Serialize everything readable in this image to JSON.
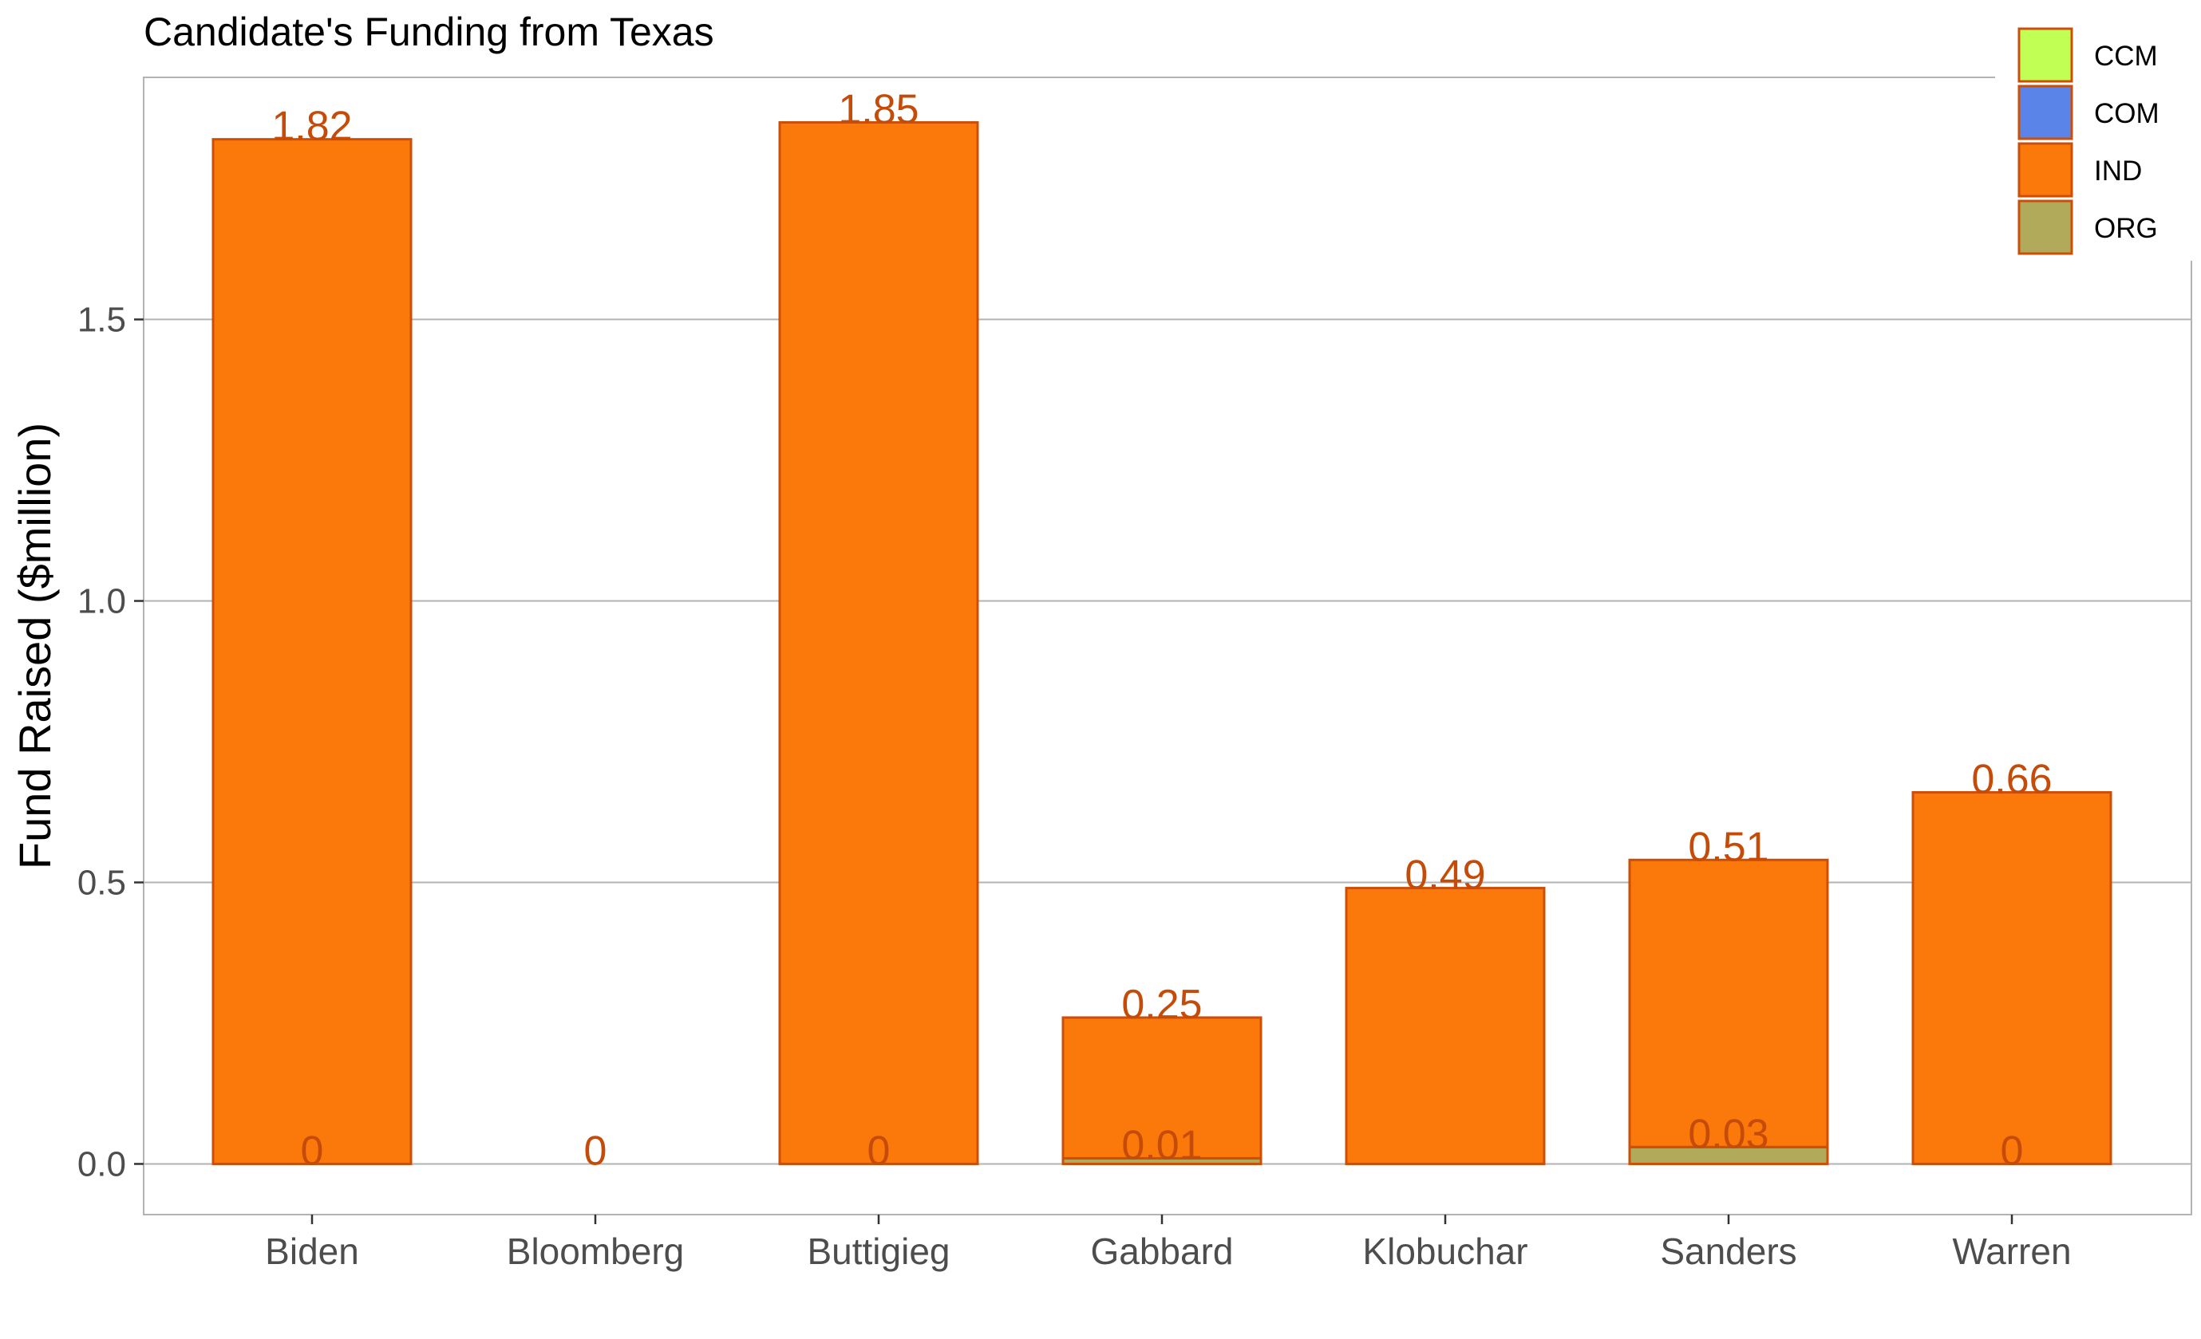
{
  "chart_data": {
    "type": "bar",
    "stacked": true,
    "title": "Candidate's Funding from Texas",
    "xlabel": "",
    "ylabel": "Fund Raised ($million)",
    "ylim": [
      -0.09,
      1.93
    ],
    "yticks": [
      0.0,
      0.5,
      1.0,
      1.5
    ],
    "ytick_labels": [
      "0.0",
      "0.5",
      "1.0",
      "1.5"
    ],
    "grid": "horizontal",
    "legend_position": "top-right",
    "categories": [
      "Biden",
      "Bloomberg",
      "Buttigieg",
      "Gabbard",
      "Klobuchar",
      "Sanders",
      "Warren"
    ],
    "series": [
      {
        "name": "CCM",
        "color": "#c2ff55",
        "values": [
          0,
          0,
          0,
          0,
          0,
          0,
          0
        ]
      },
      {
        "name": "COM",
        "color": "#5b84e8",
        "values": [
          0,
          0,
          0,
          0,
          0,
          0,
          0
        ]
      },
      {
        "name": "IND",
        "color": "#fb780a",
        "values": [
          1.82,
          0,
          1.85,
          0.25,
          0.49,
          0.51,
          0.66
        ]
      },
      {
        "name": "ORG",
        "color": "#b1aa5a",
        "values": [
          0,
          0,
          0,
          0.01,
          0,
          0.03,
          0
        ]
      }
    ],
    "data_labels": [
      {
        "category": "Biden",
        "series": "IND",
        "text": "1.82"
      },
      {
        "category": "Biden",
        "series": "ORG",
        "text": "0"
      },
      {
        "category": "Bloomberg",
        "series": "ORG",
        "text": "0"
      },
      {
        "category": "Buttigieg",
        "series": "IND",
        "text": "1.85"
      },
      {
        "category": "Buttigieg",
        "series": "ORG",
        "text": "0"
      },
      {
        "category": "Gabbard",
        "series": "IND",
        "text": "0.25"
      },
      {
        "category": "Gabbard",
        "series": "ORG",
        "text": "0.01"
      },
      {
        "category": "Klobuchar",
        "series": "IND",
        "text": "0.49"
      },
      {
        "category": "Sanders",
        "series": "IND",
        "text": "0.51"
      },
      {
        "category": "Sanders",
        "series": "ORG",
        "text": "0.03"
      },
      {
        "category": "Warren",
        "series": "IND",
        "text": "0.66"
      },
      {
        "category": "Warren",
        "series": "ORG",
        "text": "0"
      }
    ],
    "colors": {
      "bar_outline": "#cc4f08",
      "label_text": "#c54b09",
      "gridline": "#b3b3b3",
      "panel_border": "#b3b3b3",
      "axis_text": "#4d4d4d"
    }
  }
}
